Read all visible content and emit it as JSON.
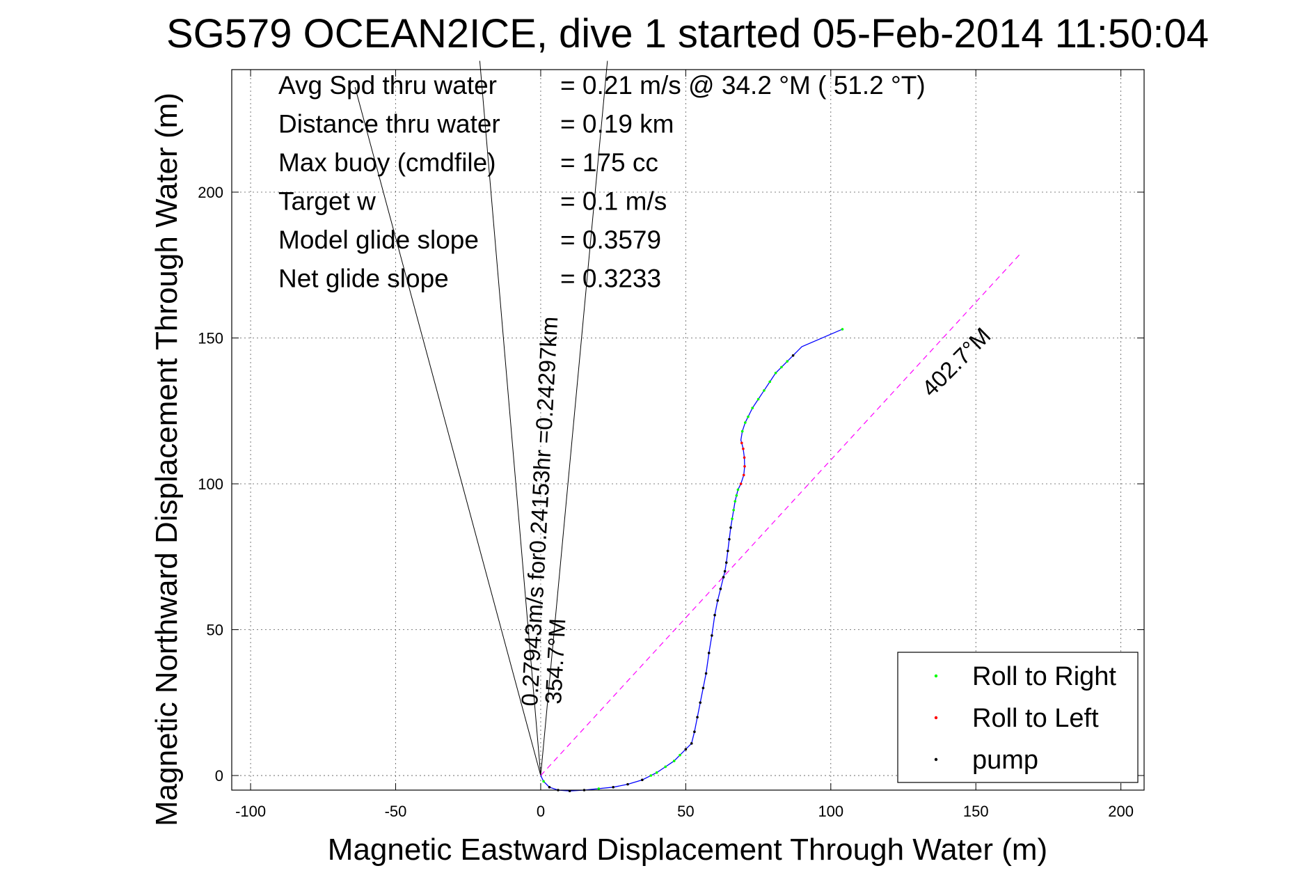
{
  "chart_data": {
    "type": "line",
    "title": "SG579 OCEAN2ICE, dive 1 started 05-Feb-2014 11:50:04",
    "xlabel": "Magnetic Eastward Displacement Through Water (m)",
    "ylabel": "Magnetic Northward Displacement Through Water (m)",
    "xlim": [
      -106.5,
      208
    ],
    "ylim": [
      -5,
      242
    ],
    "xticks": [
      -100,
      -50,
      0,
      50,
      100,
      150,
      200
    ],
    "yticks": [
      0,
      50,
      100,
      150,
      200
    ],
    "grid": true,
    "legend_placement": "bottom-right",
    "info_lines": [
      {
        "label": "Avg Spd thru water",
        "value": "=  0.21 m/s @  34.2 °M ( 51.2 °T)"
      },
      {
        "label": "Distance thru water",
        "value": "=  0.19 km"
      },
      {
        "label": "Max buoy (cmdfile)",
        "value": "= 175 cc"
      },
      {
        "label": "Target w",
        "value": "= 0.1 m/s"
      },
      {
        "label": "Model glide slope",
        "value": "= 0.3579"
      },
      {
        "label": "Net glide slope",
        "value": "= 0.3233"
      }
    ],
    "colors": {
      "track": "#0000ff",
      "roll_right": "#00ff00",
      "roll_left": "#ff0000",
      "pump": "#000000",
      "course_line": "#ff00ff",
      "current_lines": "#000000"
    },
    "track": {
      "x": [
        0,
        1,
        3,
        6,
        10,
        15,
        20,
        25,
        30,
        35,
        38,
        40,
        43,
        46,
        48,
        50,
        52,
        53,
        54,
        55,
        56,
        57,
        58,
        59,
        60,
        61,
        62,
        63,
        63.5,
        64,
        64.5,
        65,
        65.5,
        66,
        66.5,
        67,
        67.5,
        68,
        69,
        70,
        70.3,
        70.2,
        69.8,
        69.3,
        69,
        69.5,
        70.5,
        71.5,
        73,
        75,
        77,
        79,
        81,
        83,
        85,
        87,
        90,
        104
      ],
      "y": [
        0,
        -2,
        -4,
        -5,
        -5.3,
        -5,
        -4.5,
        -4,
        -3,
        -1.5,
        0,
        1,
        3,
        5,
        7,
        9,
        11,
        15,
        20,
        25,
        30,
        35,
        42,
        48,
        55,
        60,
        64,
        68,
        70,
        73,
        77,
        81,
        85,
        88,
        91,
        94,
        96,
        98,
        100,
        103,
        106,
        109,
        112,
        114,
        115,
        118,
        121,
        123,
        126,
        129,
        132,
        135,
        138,
        140,
        142,
        144,
        147,
        153
      ]
    },
    "legend": [
      {
        "label": "Roll to Right",
        "key": "roll_right"
      },
      {
        "label": "Roll to Left",
        "key": "roll_left"
      },
      {
        "label": "pump",
        "key": "pump"
      }
    ],
    "roll_right_points": {
      "x": [
        1,
        20,
        38,
        40,
        43,
        46,
        48,
        66,
        66.5,
        67,
        67.5,
        68,
        69.5,
        70.5,
        71.5,
        73,
        75,
        77,
        79,
        81,
        83,
        85,
        104
      ],
      "y": [
        -2,
        -4.5,
        0,
        1,
        3,
        5,
        7,
        88,
        91,
        94,
        96,
        98,
        118,
        121,
        123,
        126,
        129,
        132,
        135,
        138,
        140,
        142,
        153
      ]
    },
    "roll_left_points": {
      "x": [
        69,
        70,
        70.3,
        70.2,
        69.8,
        69.3
      ],
      "y": [
        100,
        103,
        106,
        109,
        112,
        114
      ]
    },
    "pump_points": {
      "x": [
        3,
        6,
        10,
        15,
        25,
        30,
        35,
        50,
        52,
        53,
        54,
        55,
        56,
        57,
        58,
        59,
        60,
        61,
        62,
        63,
        63.5,
        64,
        64.5,
        65,
        65.5,
        87
      ],
      "y": [
        -4,
        -5,
        -5.3,
        -5,
        -4,
        -3,
        -1.5,
        9,
        11,
        15,
        20,
        25,
        30,
        35,
        42,
        48,
        55,
        60,
        64,
        68,
        70,
        73,
        77,
        81,
        85,
        144
      ]
    },
    "course_line": {
      "x": [
        0,
        165
      ],
      "y": [
        0,
        178.5
      ],
      "label": "402.7°M"
    },
    "current_lines": [
      {
        "x": [
          0,
          -64
        ],
        "y": [
          0,
          236
        ]
      },
      {
        "x": [
          0,
          -21
        ],
        "y": [
          0,
          245
        ]
      },
      {
        "x": [
          0,
          23
        ],
        "y": [
          0,
          245
        ]
      }
    ],
    "current_labels": [
      "0.27943m/s for0.24153hr =0.24297km",
      "354.7°M"
    ]
  }
}
